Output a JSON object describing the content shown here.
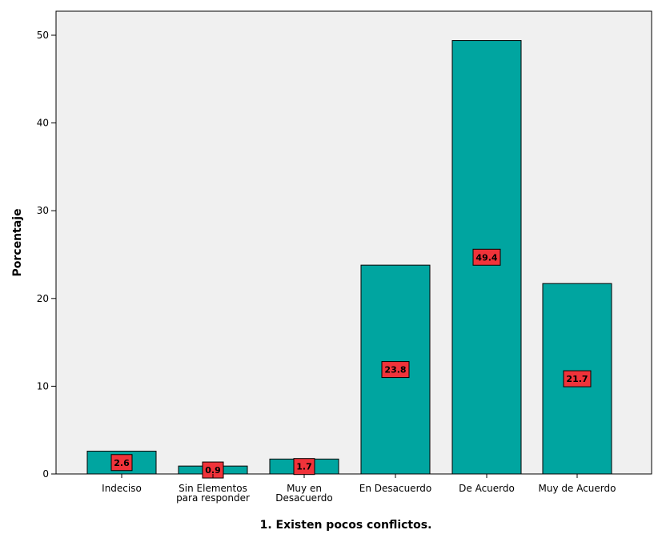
{
  "chart_data": {
    "type": "bar",
    "categories": [
      "Indeciso",
      "Sin Elementos para responder",
      "Muy en Desacuerdo",
      "En Desacuerdo",
      "De Acuerdo",
      "Muy de Acuerdo"
    ],
    "category_lines": [
      [
        "Indeciso"
      ],
      [
        "Sin Elementos",
        "para responder"
      ],
      [
        "Muy en",
        "Desacuerdo"
      ],
      [
        "En Desacuerdo"
      ],
      [
        "De Acuerdo"
      ],
      [
        "Muy de Acuerdo"
      ]
    ],
    "values": [
      2.6,
      0.9,
      1.7,
      23.8,
      49.4,
      21.7
    ],
    "data_labels": [
      "2.6",
      "0.9",
      "1.7",
      "23.8",
      "49.4",
      "21.7"
    ],
    "xlabel": "1. Existen pocos conflictos.",
    "ylabel": "Porcentaje",
    "ylim": [
      0,
      55
    ],
    "yticks": [
      0,
      10,
      20,
      30,
      40,
      50
    ],
    "grid": false,
    "colors": {
      "bar": "#00A5A0",
      "bar_stroke": "#000000",
      "plot_bg": "#F0F0F0",
      "label_bg": "#F0333A",
      "label_stroke": "#000000"
    }
  }
}
